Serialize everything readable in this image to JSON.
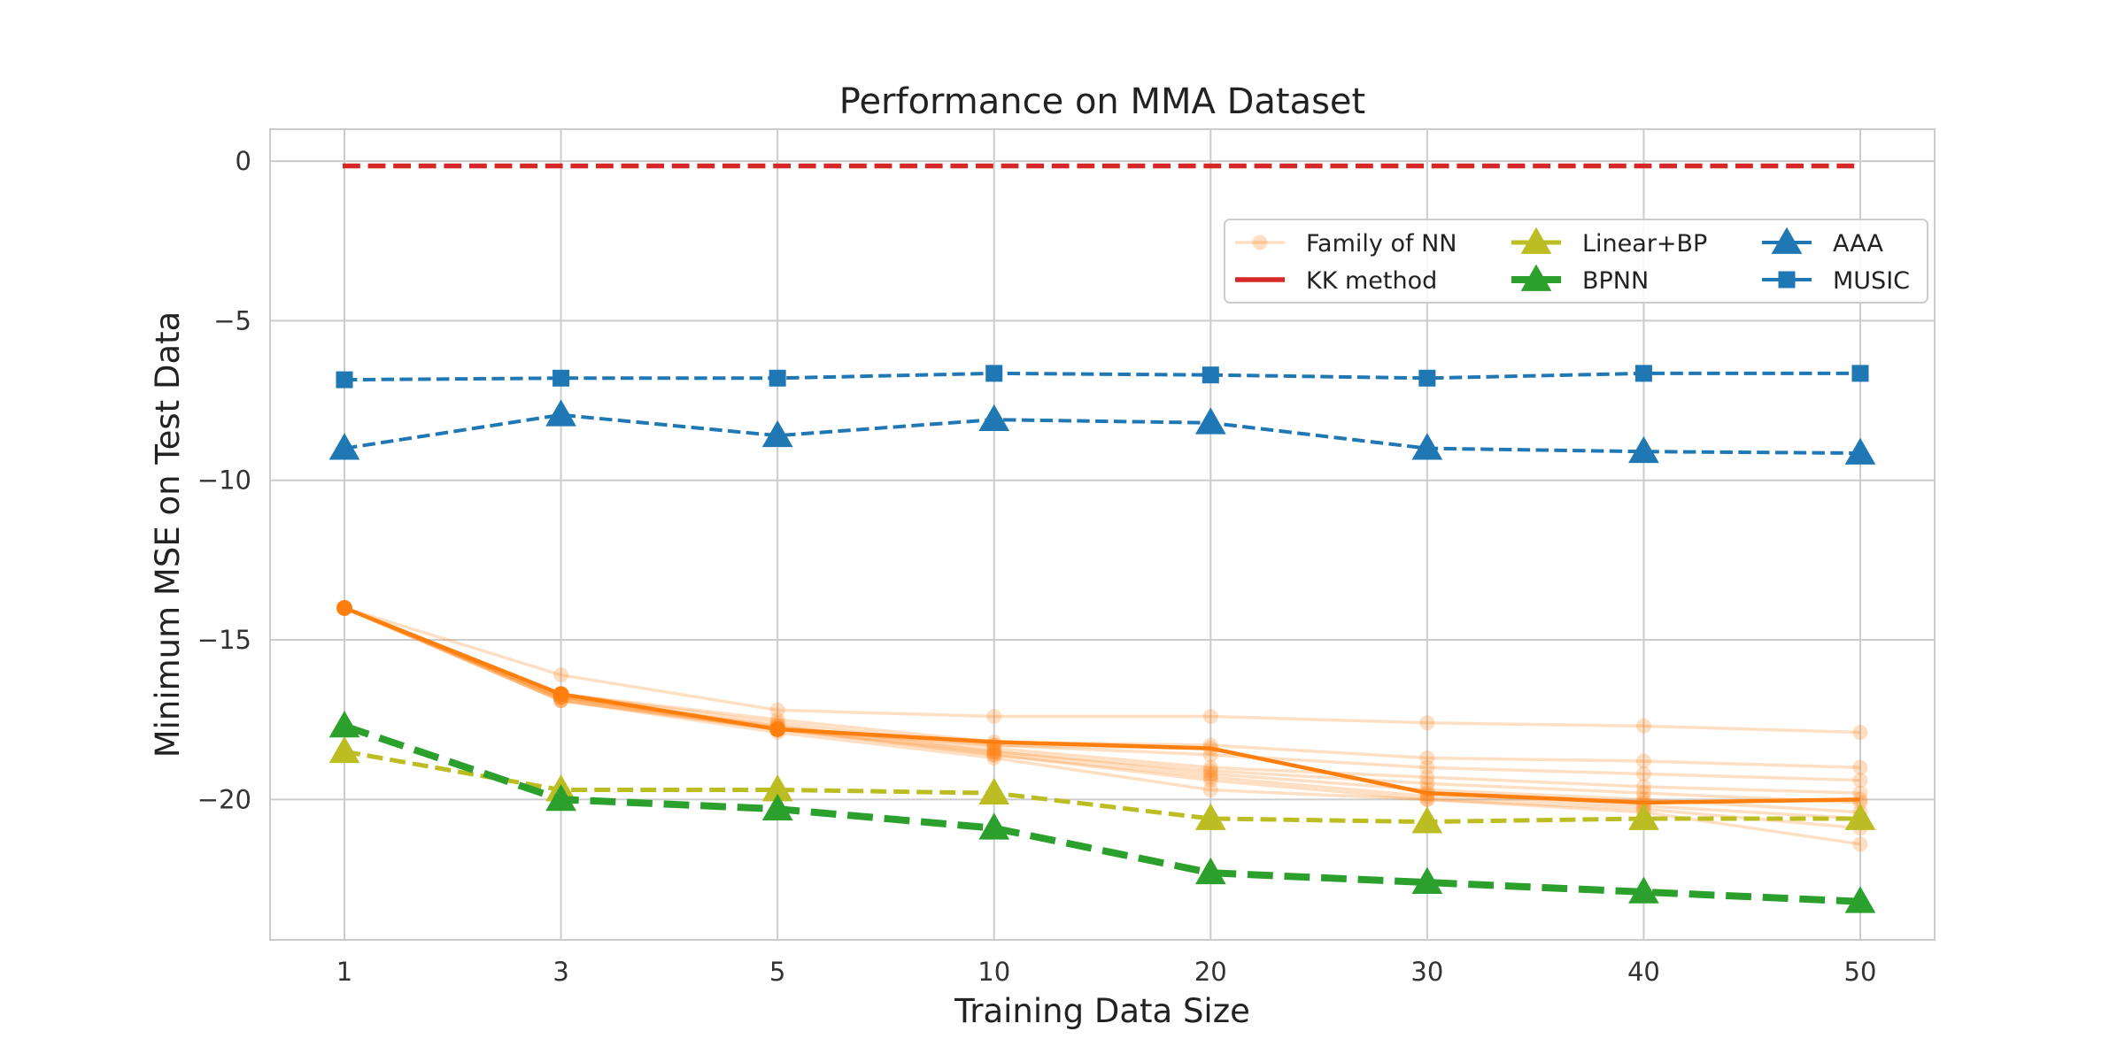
{
  "chart_data": {
    "type": "line",
    "title": "Performance on MMA Dataset",
    "xlabel": "Training Data Size",
    "ylabel": "Minimum MSE on Test Data",
    "categories": [
      "1",
      "3",
      "5",
      "10",
      "20",
      "30",
      "40",
      "50"
    ],
    "ylim": [
      -24.4,
      1.0
    ],
    "yticks": [
      0,
      -5,
      -10,
      -15,
      -20
    ],
    "ytick_labels": [
      "0",
      "−5",
      "−10",
      "−15",
      "−20"
    ],
    "grid": true,
    "legend": {
      "placement": "upper-right",
      "columns": 3
    },
    "family_name": "Family of NN",
    "family_color": "#ff7f0e",
    "family": [
      [
        -14.0,
        -16.1,
        -17.2,
        -17.4,
        -17.4,
        -17.6,
        -17.7,
        -17.9
      ],
      [
        -14.0,
        -16.7,
        -17.5,
        -18.2,
        -18.3,
        -18.7,
        -18.8,
        -19.0
      ],
      [
        -14.0,
        -16.7,
        -17.6,
        -18.3,
        -18.6,
        -19.0,
        -19.2,
        -19.4
      ],
      [
        -14.0,
        -16.8,
        -17.7,
        -18.4,
        -19.0,
        -19.3,
        -19.6,
        -19.8
      ],
      [
        -14.0,
        -16.8,
        -17.7,
        -18.5,
        -19.1,
        -19.5,
        -19.8,
        -20.1
      ],
      [
        -14.0,
        -16.8,
        -17.8,
        -18.5,
        -19.2,
        -19.7,
        -20.0,
        -20.4
      ],
      [
        -14.0,
        -16.9,
        -17.8,
        -18.6,
        -19.3,
        -19.9,
        -20.2,
        -20.6
      ],
      [
        -14.0,
        -16.9,
        -17.8,
        -18.6,
        -19.4,
        -20.0,
        -20.3,
        -20.9
      ],
      [
        -14.0,
        -16.9,
        -17.9,
        -18.7,
        -19.7,
        -20.0,
        -20.4,
        -21.4
      ],
      [
        -14.0,
        -16.8,
        -17.8,
        -18.3,
        -18.4,
        -19.8,
        -20.1,
        -20.0
      ]
    ],
    "family_highlight": [
      -14.0,
      -16.7,
      -17.8,
      -18.2,
      -18.4,
      -19.8,
      -20.1,
      -20.0
    ],
    "series": [
      {
        "name": "KK method",
        "color": "#d62728",
        "marker": "none",
        "dash": "dashed",
        "width": 5.5,
        "values": [
          -0.15,
          -0.15,
          -0.15,
          -0.15,
          -0.15,
          -0.15,
          -0.15,
          -0.15
        ]
      },
      {
        "name": "Linear+BP",
        "color": "#bcbd22",
        "marker": "triangle",
        "dash": "dashed",
        "width": 5,
        "values": [
          -18.5,
          -19.7,
          -19.7,
          -19.8,
          -20.6,
          -20.7,
          -20.6,
          -20.6
        ]
      },
      {
        "name": "BPNN",
        "color": "#2ca02c",
        "marker": "triangle",
        "dash": "dashed",
        "width": 8,
        "values": [
          -17.7,
          -20.0,
          -20.3,
          -20.9,
          -22.3,
          -22.6,
          -22.9,
          -23.2
        ]
      },
      {
        "name": "AAA",
        "color": "#1f77b4",
        "marker": "triangle",
        "dash": "dashed",
        "width": 4,
        "values": [
          -9.0,
          -7.95,
          -8.6,
          -8.1,
          -8.2,
          -9.0,
          -9.1,
          -9.15
        ]
      },
      {
        "name": "MUSIC",
        "color": "#1f77b4",
        "marker": "square",
        "dash": "dashed",
        "width": 4,
        "values": [
          -6.85,
          -6.8,
          -6.8,
          -6.65,
          -6.7,
          -6.8,
          -6.65,
          -6.65
        ]
      }
    ],
    "legend_order": [
      [
        "Family of NN",
        "Linear+BP",
        "AAA"
      ],
      [
        "KK method",
        "BPNN",
        "MUSIC"
      ]
    ]
  }
}
